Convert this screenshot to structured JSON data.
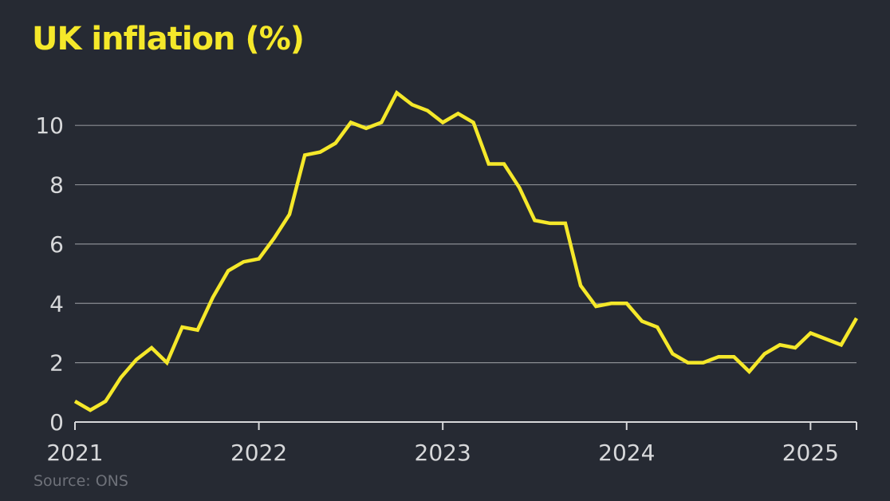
{
  "colors": {
    "background": "#262a33",
    "line": "#f5e82a",
    "title": "#f5e82a",
    "text": "#d7d8da",
    "grid": "#8a8d93",
    "source": "#6e7179"
  },
  "source": "Source: ONS",
  "chart_data": {
    "type": "line",
    "title": "UK inflation (%)",
    "xlabel": "",
    "ylabel": "",
    "ylim": [
      0,
      11
    ],
    "yticks": [
      0,
      2,
      4,
      6,
      8,
      10
    ],
    "xticks": [
      "2021",
      "2022",
      "2023",
      "2024",
      "2025"
    ],
    "xlim": [
      "2021-01",
      "2025-04"
    ],
    "grid": true,
    "x": [
      "2021-01",
      "2021-02",
      "2021-03",
      "2021-04",
      "2021-05",
      "2021-06",
      "2021-07",
      "2021-08",
      "2021-09",
      "2021-10",
      "2021-11",
      "2021-12",
      "2022-01",
      "2022-02",
      "2022-03",
      "2022-04",
      "2022-05",
      "2022-06",
      "2022-07",
      "2022-08",
      "2022-09",
      "2022-10",
      "2022-11",
      "2022-12",
      "2023-01",
      "2023-02",
      "2023-03",
      "2023-04",
      "2023-05",
      "2023-06",
      "2023-07",
      "2023-08",
      "2023-09",
      "2023-10",
      "2023-11",
      "2023-12",
      "2024-01",
      "2024-02",
      "2024-03",
      "2024-04",
      "2024-05",
      "2024-06",
      "2024-07",
      "2024-08",
      "2024-09",
      "2024-10",
      "2024-11",
      "2024-12",
      "2025-01",
      "2025-02",
      "2025-03",
      "2025-04"
    ],
    "series": [
      {
        "values": [
          0.7,
          0.4,
          0.7,
          1.5,
          2.1,
          2.5,
          2.0,
          3.2,
          3.1,
          4.2,
          5.1,
          5.4,
          5.5,
          6.2,
          7.0,
          9.0,
          9.1,
          9.4,
          10.1,
          9.9,
          10.1,
          11.1,
          10.7,
          10.5,
          10.1,
          10.4,
          10.1,
          8.7,
          8.7,
          7.9,
          6.8,
          6.7,
          6.7,
          4.6,
          3.9,
          4.0,
          4.0,
          3.4,
          3.2,
          2.3,
          2.0,
          2.0,
          2.2,
          2.2,
          1.7,
          2.3,
          2.6,
          2.5,
          3.0,
          2.8,
          2.6,
          3.5
        ]
      }
    ]
  }
}
